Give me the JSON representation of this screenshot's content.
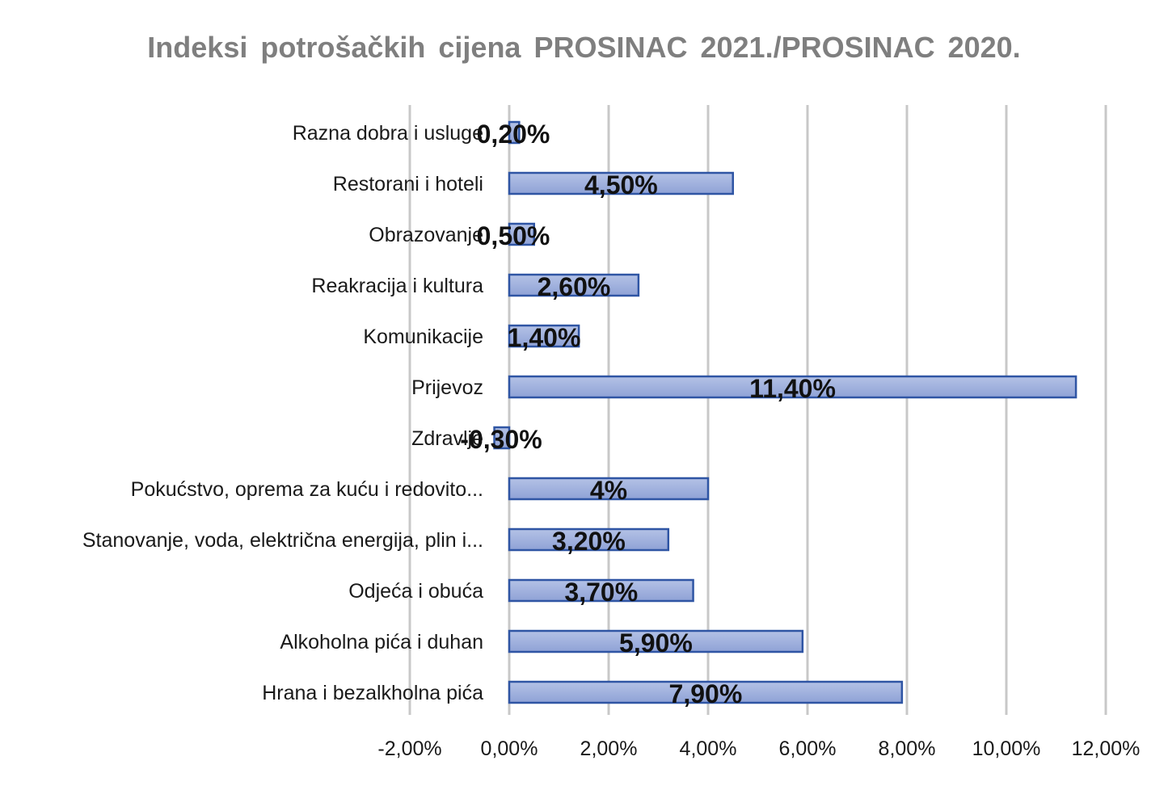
{
  "chart_data": {
    "type": "bar",
    "orientation": "horizontal",
    "title": "Indeksi potrošačkih cijena PROSINAC 2021./PROSINAC 2020.",
    "categories": [
      "Razna dobra i usluge",
      "Restorani i hoteli",
      "Obrazovanje",
      "Reakracija i kultura",
      "Komunikacije",
      "Prijevoz",
      "Zdravlje",
      "Pokućstvo, oprema za kuću i redovito...",
      "Stanovanje, voda, električna energija, plin i...",
      "Odjeća i obuća",
      "Alkoholna pića i duhan",
      "Hrana  i bezalkholna pića"
    ],
    "values": [
      0.2,
      4.5,
      0.5,
      2.6,
      1.4,
      11.4,
      -0.3,
      4.0,
      3.2,
      3.7,
      5.9,
      7.9
    ],
    "data_labels": [
      "0,20%",
      "4,50%",
      "0,50%",
      "2,60%",
      "1,40%",
      "11,40%",
      "-0,30%",
      "4%",
      "3,20%",
      "3,70%",
      "5,90%",
      "7,90%"
    ],
    "x_ticks": [
      "-2,00%",
      "0,00%",
      "2,00%",
      "4,00%",
      "6,00%",
      "8,00%",
      "10,00%",
      "12,00%"
    ],
    "xlim": [
      -2,
      12
    ],
    "grid": true,
    "legend": "none",
    "colors": {
      "bar_fill": "#8fa2d6",
      "bar_fill_light": "#b4c2e6",
      "bar_stroke": "#2f55a4",
      "grid": "#c8c8c8",
      "title": "#7f7f7f"
    }
  }
}
